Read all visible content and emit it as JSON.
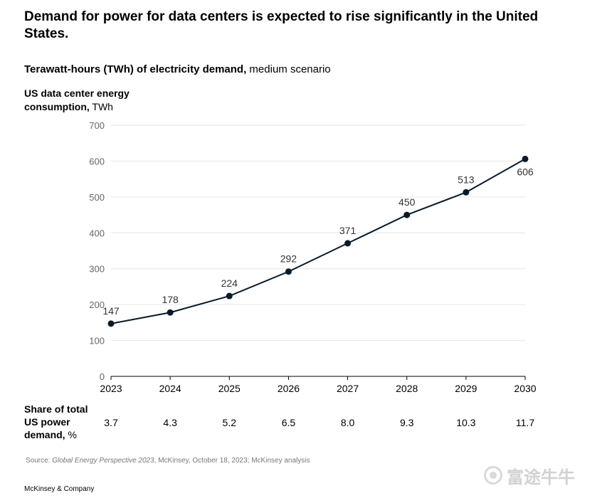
{
  "header": {
    "title": "Demand for power for data centers is expected to rise significantly in the United States.",
    "subtitle_bold": "Terawatt-hours (TWh) of electricity demand,",
    "subtitle_regular": " medium scenario"
  },
  "axis": {
    "ylabel_bold": "US data center energy consumption,",
    "ylabel_unit": " TWh"
  },
  "share": {
    "label_bold": "Share of total US power demand,",
    "label_unit": " %",
    "values": [
      "3.7",
      "4.3",
      "5.2",
      "6.5",
      "8.0",
      "9.3",
      "10.3",
      "11.7"
    ]
  },
  "chart_data": {
    "type": "line",
    "title": "Demand for power for data centers is expected to rise significantly in the United States.",
    "subtitle": "Terawatt-hours (TWh) of electricity demand, medium scenario",
    "xlabel": "",
    "ylabel": "US data center energy consumption, TWh",
    "x": [
      "2023",
      "2024",
      "2025",
      "2026",
      "2027",
      "2028",
      "2029",
      "2030"
    ],
    "series": [
      {
        "values": [
          147,
          178,
          224,
          292,
          371,
          450,
          513,
          606
        ]
      }
    ],
    "data_labels": [
      "147",
      "178",
      "224",
      "292",
      "371",
      "450",
      "513",
      "606"
    ],
    "ylim": [
      0,
      700
    ],
    "yticks": [
      0,
      100,
      200,
      300,
      400,
      500,
      600,
      700
    ],
    "grid": true,
    "line_color": "#051c2c",
    "grid_color": "#e6e6e6",
    "tick_label_color": "#666666"
  },
  "source": {
    "prefix": "Source: ",
    "italic": "Global Energy Perspective 2023",
    "rest": ", McKinsey, October 18, 2023; McKinsey analysis"
  },
  "footer": {
    "brand": "McKinsey & Company"
  },
  "watermark": {
    "text": "富途牛牛"
  }
}
